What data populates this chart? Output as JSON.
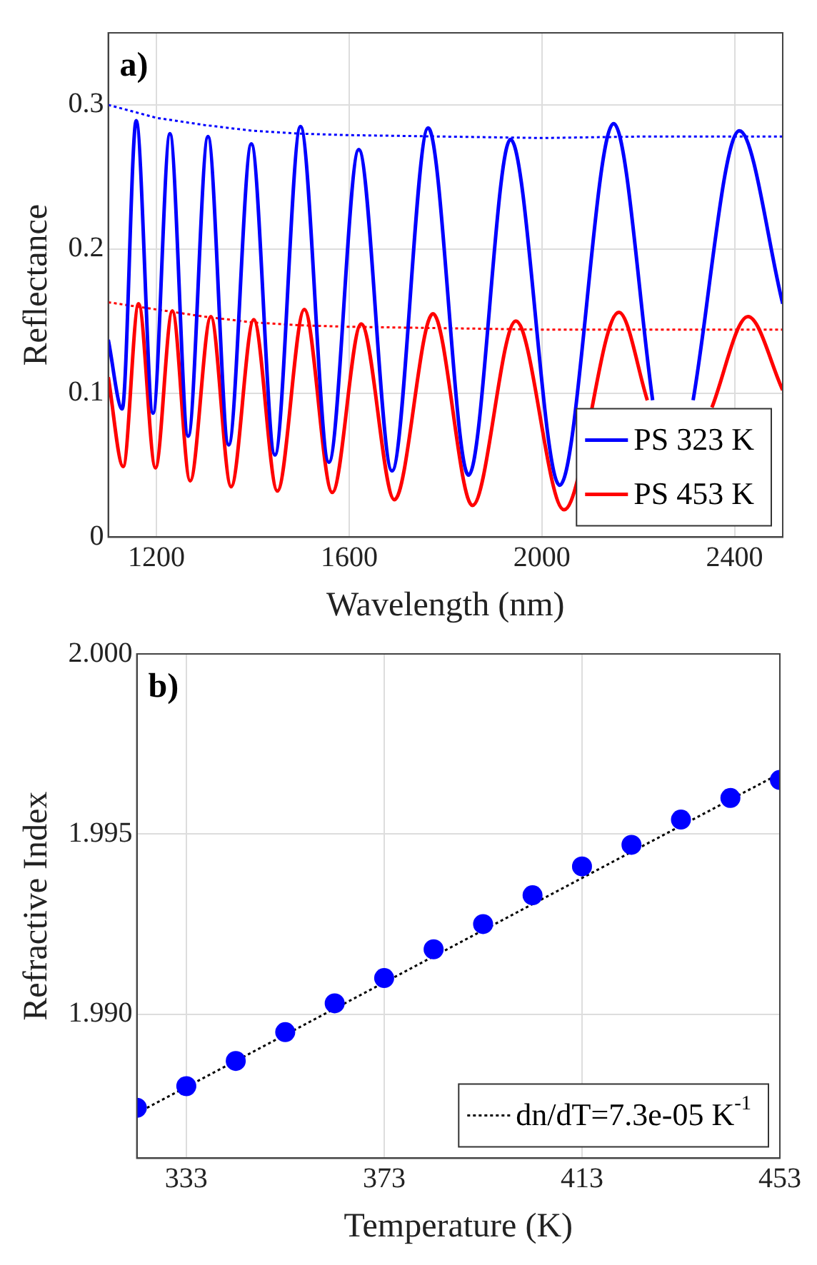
{
  "chart_data": [
    {
      "type": "line",
      "xlabel": "Wavelength (nm)",
      "ylabel": "Reflectance",
      "annotations": [
        "a)"
      ],
      "xlim": [
        1100,
        2500
      ],
      "xticks": [
        1200,
        1600,
        2000,
        2400
      ],
      "ylim": [
        0,
        0.35
      ],
      "yticks": [
        0,
        0.1,
        0.2,
        0.3
      ],
      "grid": true,
      "legend": "bottom right",
      "marker": "none",
      "series": [
        {
          "name": "PS 323 K",
          "color": "#0000ff",
          "line_style": "solid",
          "x": [
            1100,
            1129,
            1158,
            1193,
            1228,
            1266,
            1307,
            1350,
            1397,
            1446,
            1499,
            1558,
            1620,
            1689,
            1764,
            1848,
            1935,
            2037,
            2149,
            2230,
            2272,
            2314,
            2410,
            2500
          ],
          "values": [
            0.137,
            0.089,
            0.289,
            0.086,
            0.28,
            0.07,
            0.278,
            0.064,
            0.273,
            0.057,
            0.285,
            0.052,
            0.269,
            0.046,
            0.284,
            0.043,
            0.276,
            0.036,
            0.287,
            0.095,
            null,
            0.095,
            0.282,
            0.162
          ]
        },
        {
          "name": "PS 453 K",
          "color": "#ff0000",
          "line_style": "solid",
          "x": [
            1100,
            1131,
            1163,
            1198,
            1233,
            1270,
            1313,
            1355,
            1402,
            1451,
            1507,
            1565,
            1625,
            1694,
            1774,
            1856,
            1946,
            2046,
            2160,
            2219,
            2286,
            2353,
            2428,
            2500
          ],
          "values": [
            0.111,
            0.049,
            0.162,
            0.048,
            0.157,
            0.039,
            0.153,
            0.035,
            0.151,
            0.032,
            0.158,
            0.031,
            0.148,
            0.026,
            0.155,
            0.022,
            0.15,
            0.019,
            0.156,
            0.095,
            null,
            0.09,
            0.153,
            0.102
          ]
        },
        {
          "color": "#0000ff",
          "line_style": "dotted",
          "x": [
            1100,
            1200,
            1300,
            1400,
            1500,
            1600,
            1800,
            2000,
            2200,
            2500
          ],
          "values": [
            0.3,
            0.291,
            0.286,
            0.282,
            0.28,
            0.279,
            0.278,
            0.277,
            0.278,
            0.278
          ]
        },
        {
          "color": "#ff0000",
          "line_style": "dotted",
          "x": [
            1100,
            1200,
            1300,
            1400,
            1500,
            1600,
            1800,
            2000,
            2500
          ],
          "values": [
            0.163,
            0.158,
            0.153,
            0.149,
            0.147,
            0.146,
            0.145,
            0.144,
            0.144
          ]
        }
      ]
    },
    {
      "type": "scatter",
      "xlabel": "Temperature (K)",
      "ylabel": "Refractive Index",
      "annotations": [
        "b)"
      ],
      "xlim": [
        323,
        453
      ],
      "xticks": [
        333,
        373,
        413,
        453
      ],
      "ylim": [
        1.986,
        2.0
      ],
      "yticks": [
        {
          "value": 1.99,
          "label": "1.990"
        },
        1.995,
        {
          "value": 2.0,
          "label": "2.000"
        }
      ],
      "grid": true,
      "legend": "bottom right",
      "marker": "circle",
      "series": [
        {
          "color": "#0000ff",
          "x": [
            323,
            333,
            343,
            353,
            363,
            373,
            383,
            393,
            403,
            413,
            423,
            433,
            443,
            453
          ],
          "values": [
            1.9874,
            1.988,
            1.9887,
            1.9895,
            1.9903,
            1.991,
            1.9918,
            1.9925,
            1.9933,
            1.9941,
            1.9947,
            1.9954,
            1.996,
            1.9965
          ]
        },
        {
          "type": "line",
          "name": "dn/dT=7.3e-05 K$^{-1}$",
          "color": "#000000",
          "line_style": "dotted",
          "marker": "none",
          "x": [
            323,
            453
          ],
          "values": [
            1.98725,
            1.99668
          ]
        }
      ]
    }
  ]
}
